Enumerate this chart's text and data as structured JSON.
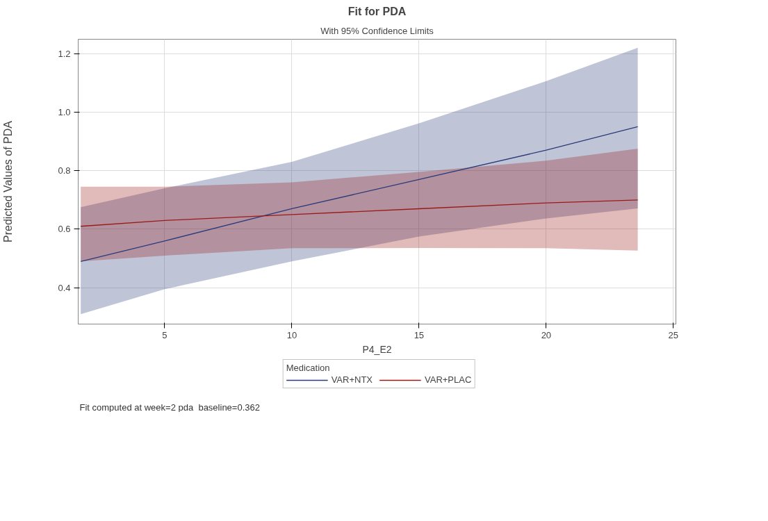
{
  "chart_data": {
    "type": "line",
    "title": "Fit for PDA",
    "subtitle": "With 95% Confidence Limits",
    "xlabel": "P4_E2",
    "ylabel": "Predicted Values of PDA",
    "legend_title": "Medication",
    "series": [
      {
        "name": "VAR+NTX",
        "color": "#2a3a7a",
        "x": [
          1.7,
          5,
          10,
          15,
          20,
          23.6
        ],
        "values": [
          0.49,
          0.56,
          0.67,
          0.77,
          0.87,
          0.95
        ],
        "lower": [
          0.31,
          0.395,
          0.49,
          0.575,
          0.637,
          0.671
        ],
        "upper": [
          0.675,
          0.74,
          0.83,
          0.962,
          1.106,
          1.22
        ]
      },
      {
        "name": "VAR+PLAC",
        "color": "#9a1a1a",
        "x": [
          1.7,
          5,
          10,
          15,
          20,
          23.6
        ],
        "values": [
          0.61,
          0.63,
          0.65,
          0.67,
          0.69,
          0.7
        ],
        "lower": [
          0.49,
          0.51,
          0.535,
          0.536,
          0.535,
          0.527
        ],
        "upper": [
          0.745,
          0.745,
          0.76,
          0.796,
          0.834,
          0.875
        ]
      }
    ],
    "xlim": [
      1.6,
      25.1
    ],
    "xticks": [
      5,
      10,
      15,
      20,
      25
    ],
    "ylim": [
      0.276,
      1.249
    ],
    "yticks": [
      {
        "value": 0.4,
        "label": "0.4"
      },
      {
        "value": 0.6,
        "label": "0.6"
      },
      {
        "value": 0.8,
        "label": "0.8"
      },
      {
        "value": 1.0,
        "label": "1.0"
      },
      {
        "value": 1.2,
        "label": "1.2"
      }
    ],
    "grid": true,
    "legend": "bottom",
    "marker": "none",
    "line_style": "solid",
    "annotations": [
      "Fit computed at week=2 pda_baseline=0.362"
    ]
  }
}
